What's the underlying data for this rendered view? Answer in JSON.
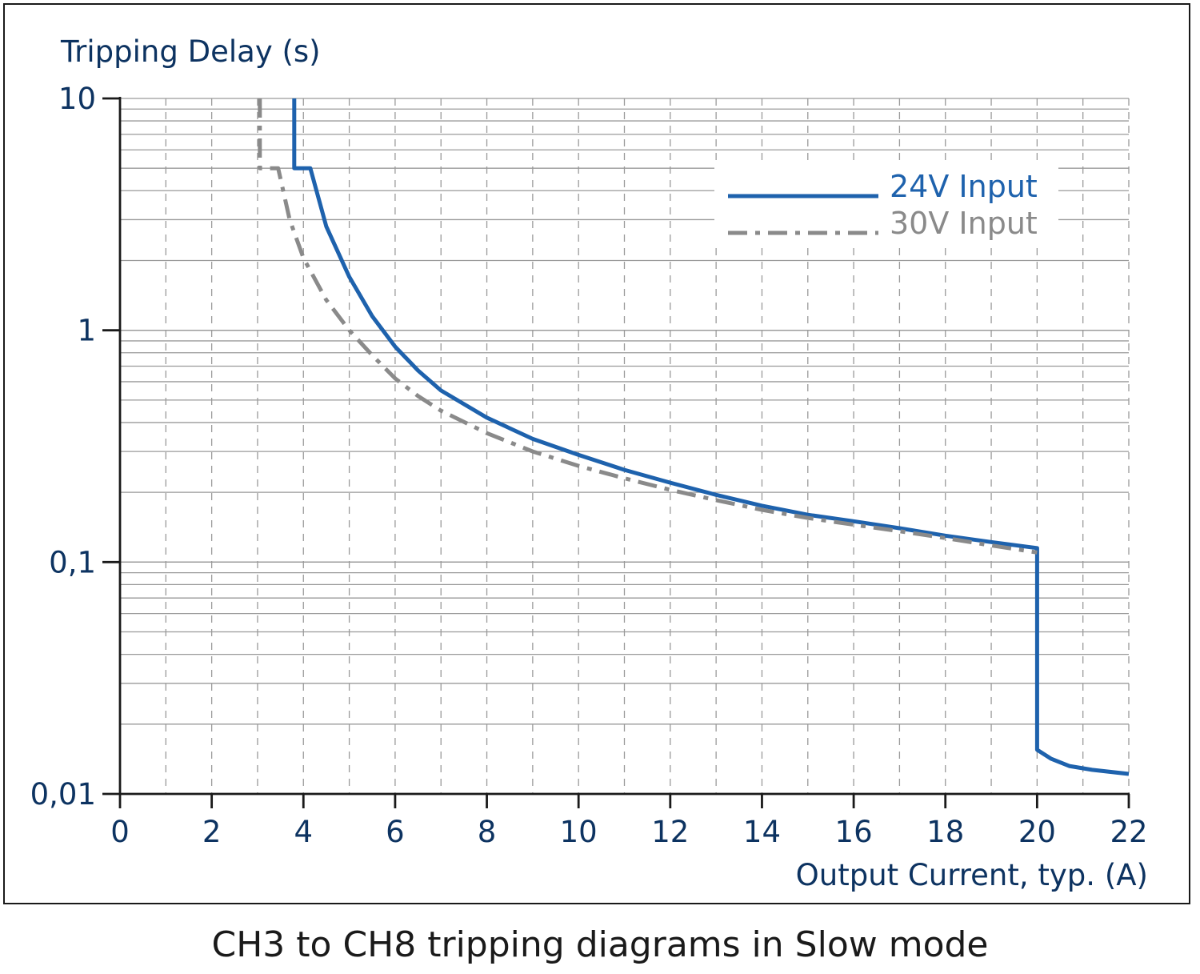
{
  "caption": "CH3 to CH8 tripping diagrams in Slow mode",
  "colors": {
    "axis_text": "#0d3361",
    "series_24v": "#1e62ad",
    "series_30v": "#8a8a8a",
    "grid": "#9a9a9a",
    "axis": "#1a1a1a"
  },
  "chart_data": {
    "type": "line",
    "title": "",
    "ylabel": "Tripping Delay (s)",
    "xlabel": "Output Current, typ. (A)",
    "xlim": [
      0,
      22
    ],
    "ylim": [
      0.01,
      10
    ],
    "yscale": "log",
    "grid": true,
    "legend": "top-right",
    "x_ticks": [
      "0",
      "2",
      "4",
      "6",
      "8",
      "10",
      "12",
      "14",
      "16",
      "18",
      "20",
      "22"
    ],
    "x_tick_values": [
      0,
      2,
      4,
      6,
      8,
      10,
      12,
      14,
      16,
      18,
      20,
      22
    ],
    "y_ticks": [
      "0,01",
      "0,1",
      "1",
      "10"
    ],
    "y_tick_values": [
      0.01,
      0.1,
      1,
      10
    ],
    "series": [
      {
        "name": "24V Input",
        "style": "solid",
        "color": "#1e62ad",
        "points": [
          [
            3.8,
            10
          ],
          [
            3.8,
            5
          ],
          [
            4.15,
            5
          ],
          [
            4.5,
            2.8
          ],
          [
            5,
            1.7
          ],
          [
            5.5,
            1.15
          ],
          [
            6,
            0.85
          ],
          [
            6.5,
            0.67
          ],
          [
            7,
            0.55
          ],
          [
            8,
            0.42
          ],
          [
            9,
            0.34
          ],
          [
            10,
            0.29
          ],
          [
            11,
            0.25
          ],
          [
            12,
            0.22
          ],
          [
            13,
            0.195
          ],
          [
            14,
            0.175
          ],
          [
            15,
            0.16
          ],
          [
            16,
            0.15
          ],
          [
            17,
            0.14
          ],
          [
            18,
            0.13
          ],
          [
            19,
            0.122
          ],
          [
            20,
            0.115
          ],
          [
            20,
            0.0155
          ],
          [
            20.3,
            0.0142
          ],
          [
            20.7,
            0.0132
          ],
          [
            21.2,
            0.0127
          ],
          [
            22,
            0.0122
          ]
        ]
      },
      {
        "name": "30V Input",
        "style": "dash-dot",
        "color": "#8a8a8a",
        "points": [
          [
            3.05,
            10
          ],
          [
            3.05,
            5
          ],
          [
            3.45,
            5
          ],
          [
            3.7,
            3.0
          ],
          [
            4,
            2.05
          ],
          [
            4.5,
            1.35
          ],
          [
            5,
            1.0
          ],
          [
            5.5,
            0.78
          ],
          [
            6,
            0.62
          ],
          [
            6.5,
            0.52
          ],
          [
            7,
            0.45
          ],
          [
            8,
            0.36
          ],
          [
            9,
            0.3
          ],
          [
            10,
            0.26
          ],
          [
            11,
            0.23
          ],
          [
            12,
            0.205
          ],
          [
            13,
            0.185
          ],
          [
            14,
            0.168
          ],
          [
            15,
            0.155
          ],
          [
            16,
            0.145
          ],
          [
            17,
            0.136
          ],
          [
            18,
            0.127
          ],
          [
            19,
            0.118
          ],
          [
            20,
            0.11
          ]
        ]
      }
    ]
  }
}
